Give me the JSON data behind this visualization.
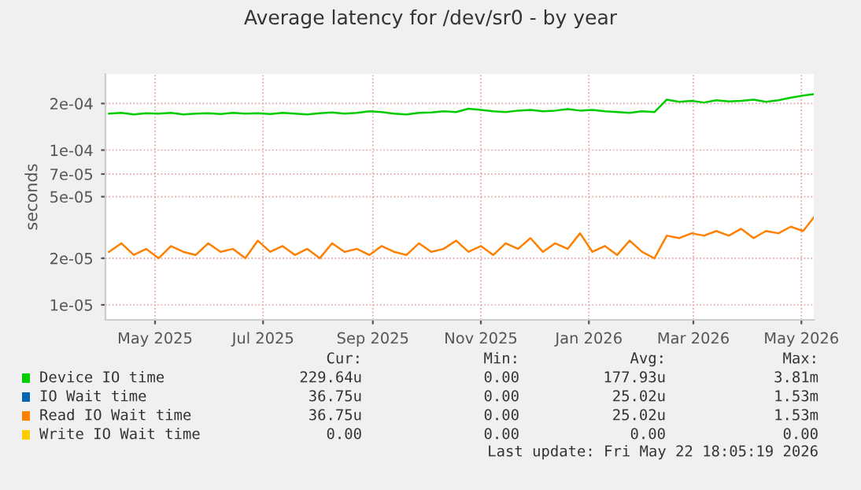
{
  "chart_data": {
    "type": "line",
    "title": "Average latency for /dev/sr0 - by year",
    "ylabel": "seconds",
    "log": "y",
    "grid": true,
    "legend": "bottom",
    "marker": "none",
    "line_style": "solid",
    "xlim": [
      "2025-04-17",
      "2026-05-22"
    ],
    "ylim": [
      8e-06,
      0.00031
    ],
    "xticks": [
      {
        "value": "2025-05-15",
        "label": "May 2025"
      },
      {
        "value": "2025-07-15",
        "label": "Jul 2025"
      },
      {
        "value": "2025-09-15",
        "label": "Sep 2025"
      },
      {
        "value": "2025-11-15",
        "label": "Nov 2025"
      },
      {
        "value": "2026-01-15",
        "label": "Jan 2026"
      },
      {
        "value": "2026-03-15",
        "label": "Mar 2026"
      },
      {
        "value": "2026-05-15",
        "label": "May 2026"
      }
    ],
    "yticks": [
      {
        "value": 1e-05,
        "label": "1e-05"
      },
      {
        "value": 2e-05,
        "label": "2e-05"
      },
      {
        "value": 5e-05,
        "label": "5e-05"
      },
      {
        "value": 7e-05,
        "label": "7e-05"
      },
      {
        "value": 0.0001,
        "label": "1e-04"
      },
      {
        "value": 0.0002,
        "label": "2e-04"
      }
    ],
    "x": [
      "2025-04-19",
      "2025-04-26",
      "2025-05-03",
      "2025-05-10",
      "2025-05-17",
      "2025-05-24",
      "2025-05-31",
      "2025-06-07",
      "2025-06-14",
      "2025-06-21",
      "2025-06-28",
      "2025-07-05",
      "2025-07-12",
      "2025-07-19",
      "2025-07-26",
      "2025-08-02",
      "2025-08-09",
      "2025-08-16",
      "2025-08-23",
      "2025-08-30",
      "2025-09-06",
      "2025-09-13",
      "2025-09-20",
      "2025-09-27",
      "2025-10-04",
      "2025-10-11",
      "2025-10-18",
      "2025-10-25",
      "2025-11-01",
      "2025-11-08",
      "2025-11-15",
      "2025-11-22",
      "2025-11-29",
      "2025-12-06",
      "2025-12-13",
      "2025-12-20",
      "2025-12-27",
      "2026-01-03",
      "2026-01-10",
      "2026-01-17",
      "2026-01-24",
      "2026-01-31",
      "2026-02-07",
      "2026-02-14",
      "2026-02-21",
      "2026-02-28",
      "2026-03-07",
      "2026-03-14",
      "2026-03-21",
      "2026-03-28",
      "2026-04-04",
      "2026-04-11",
      "2026-04-18",
      "2026-04-25",
      "2026-05-02",
      "2026-05-09",
      "2026-05-16",
      "2026-05-22"
    ],
    "series": [
      {
        "name": "Device IO time",
        "color": "#00cc00",
        "values": [
          0.000172,
          0.000174,
          0.00017,
          0.000173,
          0.000172,
          0.000174,
          0.00017,
          0.000172,
          0.000173,
          0.000171,
          0.000174,
          0.000172,
          0.000173,
          0.000171,
          0.000174,
          0.000172,
          0.00017,
          0.000173,
          0.000175,
          0.000172,
          0.000174,
          0.000178,
          0.000176,
          0.000172,
          0.00017,
          0.000174,
          0.000175,
          0.000178,
          0.000176,
          0.000185,
          0.000182,
          0.000178,
          0.000176,
          0.00018,
          0.000182,
          0.000178,
          0.00018,
          0.000184,
          0.00018,
          0.000182,
          0.000178,
          0.000176,
          0.000174,
          0.000178,
          0.000176,
          0.000212,
          0.000205,
          0.000208,
          0.000203,
          0.00021,
          0.000206,
          0.000208,
          0.000212,
          0.000205,
          0.00021,
          0.000218,
          0.000225,
          0.00023
        ]
      },
      {
        "name": "IO Wait time",
        "color": "#0066b3",
        "values": [
          null,
          null,
          null,
          null,
          null,
          null,
          null,
          null,
          null,
          null,
          null,
          null,
          null,
          null,
          null,
          null,
          null,
          null,
          null,
          null,
          null,
          null,
          null,
          null,
          null,
          null,
          null,
          null,
          null,
          null,
          null,
          null,
          null,
          null,
          null,
          null,
          null,
          null,
          null,
          null,
          null,
          null,
          null,
          null,
          null,
          null,
          null,
          null,
          null,
          null,
          null,
          null,
          null,
          null,
          null,
          null,
          null,
          null
        ]
      },
      {
        "name": "Read IO Wait time",
        "color": "#ff8000",
        "values": [
          2.2e-05,
          2.5e-05,
          2.1e-05,
          2.3e-05,
          2e-05,
          2.4e-05,
          2.2e-05,
          2.1e-05,
          2.5e-05,
          2.2e-05,
          2.3e-05,
          2e-05,
          2.6e-05,
          2.2e-05,
          2.4e-05,
          2.1e-05,
          2.3e-05,
          2e-05,
          2.5e-05,
          2.2e-05,
          2.3e-05,
          2.1e-05,
          2.4e-05,
          2.2e-05,
          2.1e-05,
          2.5e-05,
          2.2e-05,
          2.3e-05,
          2.6e-05,
          2.2e-05,
          2.4e-05,
          2.1e-05,
          2.5e-05,
          2.3e-05,
          2.7e-05,
          2.2e-05,
          2.5e-05,
          2.3e-05,
          2.9e-05,
          2.2e-05,
          2.4e-05,
          2.1e-05,
          2.6e-05,
          2.2e-05,
          2e-05,
          2.8e-05,
          2.7e-05,
          2.9e-05,
          2.8e-05,
          3e-05,
          2.8e-05,
          3.1e-05,
          2.7e-05,
          3e-05,
          2.9e-05,
          3.2e-05,
          3e-05,
          3.675e-05
        ]
      },
      {
        "name": "Write IO Wait time",
        "color": "#ffcc00",
        "values": [
          null,
          null,
          null,
          null,
          null,
          null,
          null,
          null,
          null,
          null,
          null,
          null,
          null,
          null,
          null,
          null,
          null,
          null,
          null,
          null,
          null,
          null,
          null,
          null,
          null,
          null,
          null,
          null,
          null,
          null,
          null,
          null,
          null,
          null,
          null,
          null,
          null,
          null,
          null,
          null,
          null,
          null,
          null,
          null,
          null,
          null,
          null,
          null,
          null,
          null,
          null,
          null,
          null,
          null,
          null,
          null,
          null,
          null
        ]
      }
    ],
    "annotations": [
      "Cur:",
      "Min:",
      "Avg:",
      "Max:",
      "229.64u",
      "0.00",
      "177.93u",
      "3.81m",
      "36.75u",
      "0.00",
      "25.02u",
      "1.53m",
      "36.75u",
      "0.00",
      "25.02u",
      "1.53m",
      "0.00",
      "0.00",
      "0.00",
      "0.00",
      "Last update: Fri May 22 18:05:19 2026"
    ]
  }
}
